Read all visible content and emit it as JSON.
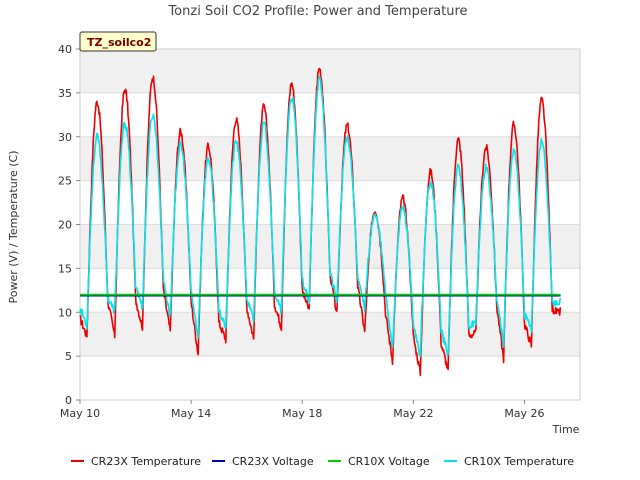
{
  "chart_data": {
    "type": "line",
    "title": "Tonzi Soil CO2 Profile: Power and Temperature",
    "site_tag": "TZ_soilco2",
    "xlabel": "Time",
    "ylabel": "Power (V) / Temperature (C)",
    "x_range": [
      "May 10",
      "May 28"
    ],
    "ylim": [
      0,
      40
    ],
    "x_ticks": [
      {
        "label": "May 10",
        "day": 10
      },
      {
        "label": "May 14",
        "day": 14
      },
      {
        "label": "May 18",
        "day": 18
      },
      {
        "label": "May 22",
        "day": 22
      },
      {
        "label": "May 26",
        "day": 26
      }
    ],
    "y_ticks": [
      0,
      5,
      10,
      15,
      20,
      25,
      30,
      35,
      40
    ],
    "grid": "horizontal bands",
    "legend_position": "bottom",
    "series": [
      {
        "name": "CR23X Temperature",
        "color": "#ee0000",
        "daily": [
          {
            "date": "May 10",
            "min": 7.3,
            "max": 34.0
          },
          {
            "date": "May 11",
            "min": 7.3,
            "max": 35.4
          },
          {
            "date": "May 12",
            "min": 8.3,
            "max": 36.8
          },
          {
            "date": "May 13",
            "min": 7.8,
            "max": 30.6
          },
          {
            "date": "May 14",
            "min": 5.3,
            "max": 28.9
          },
          {
            "date": "May 15",
            "min": 6.9,
            "max": 32.0
          },
          {
            "date": "May 16",
            "min": 7.0,
            "max": 33.4
          },
          {
            "date": "May 17",
            "min": 8.3,
            "max": 36.1
          },
          {
            "date": "May 18",
            "min": 10.2,
            "max": 37.8
          },
          {
            "date": "May 19",
            "min": 9.7,
            "max": 31.3
          },
          {
            "date": "May 20",
            "min": 7.8,
            "max": 21.6
          },
          {
            "date": "May 21",
            "min": 4.5,
            "max": 23.0
          },
          {
            "date": "May 22",
            "min": 3.1,
            "max": 26.0
          },
          {
            "date": "May 23",
            "min": 3.4,
            "max": 29.7
          },
          {
            "date": "May 24",
            "min": 7.6,
            "max": 28.8
          },
          {
            "date": "May 25",
            "min": 4.7,
            "max": 31.4
          },
          {
            "date": "May 26",
            "min": 6.2,
            "max": 34.2
          },
          {
            "date": "May 27",
            "min": 9.8,
            "max": 12.0
          }
        ]
      },
      {
        "name": "CR23X Voltage",
        "color": "#0000aa",
        "values_constant": 11.9
      },
      {
        "name": "CR10X Voltage",
        "color": "#00cc00",
        "values_constant": 12.0
      },
      {
        "name": "CR10X Temperature",
        "color": "#00e5ee",
        "daily": [
          {
            "date": "May 10",
            "min": 8.5,
            "max": 30.0
          },
          {
            "date": "May 11",
            "min": 10.0,
            "max": 31.5
          },
          {
            "date": "May 12",
            "min": 10.5,
            "max": 32.5
          },
          {
            "date": "May 13",
            "min": 9.5,
            "max": 29.0
          },
          {
            "date": "May 14",
            "min": 7.0,
            "max": 27.5
          },
          {
            "date": "May 15",
            "min": 8.5,
            "max": 29.5
          },
          {
            "date": "May 16",
            "min": 9.0,
            "max": 31.5
          },
          {
            "date": "May 17",
            "min": 10.0,
            "max": 34.5
          },
          {
            "date": "May 18",
            "min": 11.0,
            "max": 36.5
          },
          {
            "date": "May 19",
            "min": 11.0,
            "max": 30.0
          },
          {
            "date": "May 20",
            "min": 10.5,
            "max": 21.0
          },
          {
            "date": "May 21",
            "min": 6.0,
            "max": 22.0
          },
          {
            "date": "May 22",
            "min": 5.0,
            "max": 25.0
          },
          {
            "date": "May 23",
            "min": 5.0,
            "max": 26.5
          },
          {
            "date": "May 24",
            "min": 9.0,
            "max": 26.5
          },
          {
            "date": "May 25",
            "min": 6.5,
            "max": 28.5
          },
          {
            "date": "May 26",
            "min": 8.0,
            "max": 29.5
          },
          {
            "date": "May 27",
            "min": 11.0,
            "max": 12.5
          }
        ]
      }
    ]
  }
}
